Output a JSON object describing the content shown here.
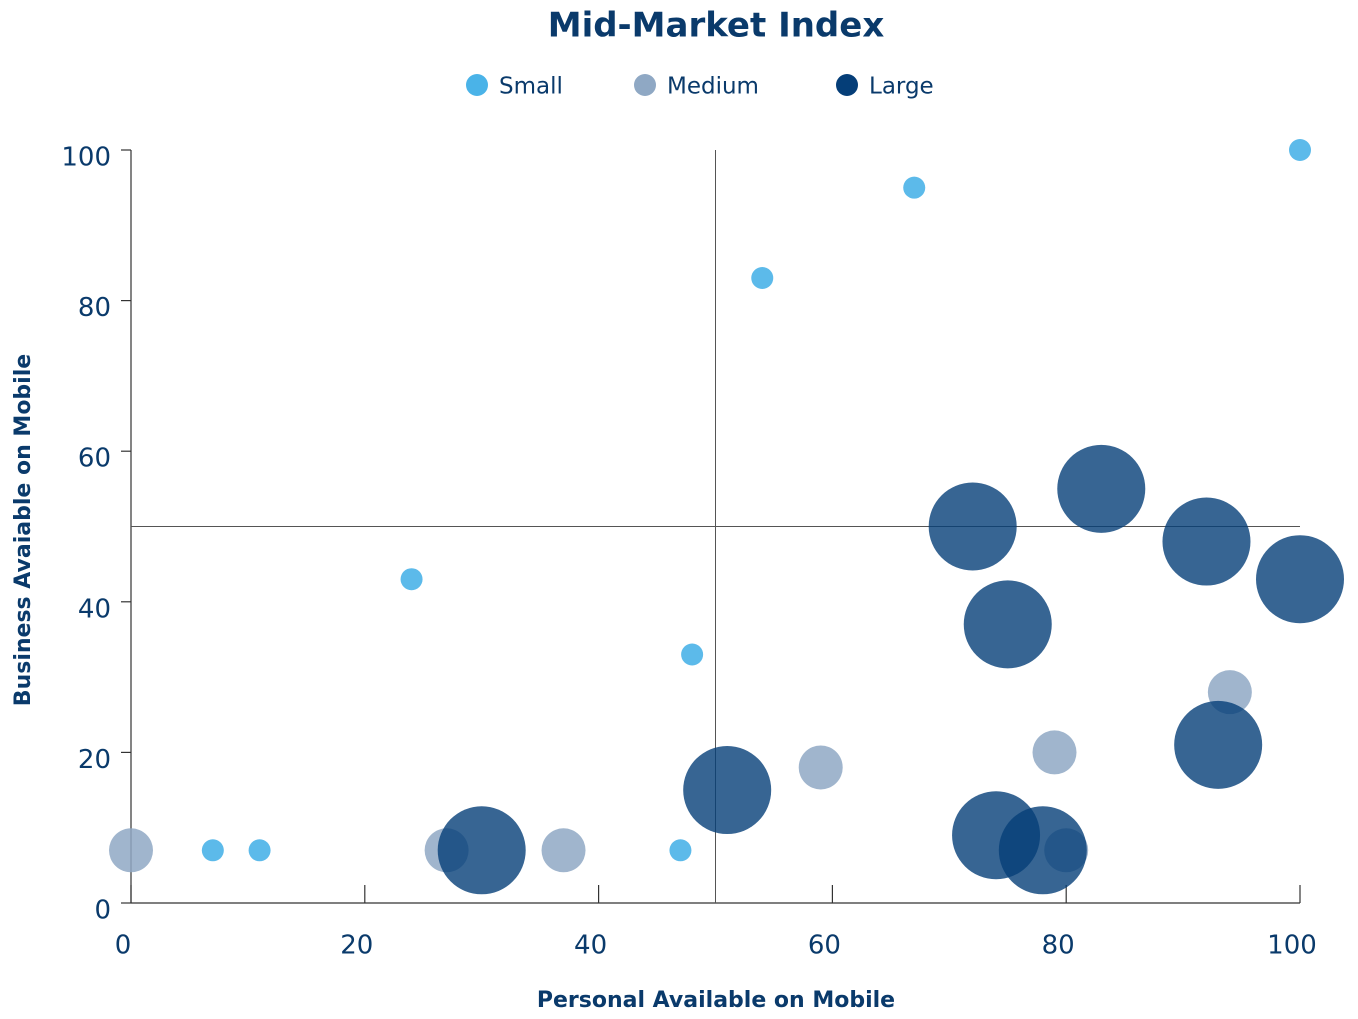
{
  "chart_data": {
    "type": "scatter",
    "title": "Mid-Market Index",
    "xlabel": "Personal Available on Mobile",
    "ylabel": "Business Avaiable on Mobile",
    "xlim": [
      0,
      100
    ],
    "ylim": [
      0,
      100
    ],
    "xticks": [
      0,
      20,
      40,
      60,
      80,
      100
    ],
    "yticks": [
      0,
      20,
      40,
      60,
      80,
      100
    ],
    "reference_lines": {
      "x": 50,
      "y": 50
    },
    "series": [
      {
        "name": "Small",
        "color": "#4ab3e8",
        "opacity": 0.9,
        "x": [
          7,
          11,
          24,
          47,
          48,
          54,
          67,
          100
        ],
        "values": [
          7,
          7,
          43,
          7,
          33,
          83,
          95,
          100
        ],
        "sizes": [
          1,
          1,
          1,
          1,
          1,
          1,
          1,
          1
        ]
      },
      {
        "name": "Medium",
        "color": "#8fa8c4",
        "opacity": 0.85,
        "x": [
          0,
          27,
          37,
          59,
          79,
          94,
          80
        ],
        "values": [
          7,
          7,
          7,
          18,
          20,
          28,
          7
        ],
        "sizes": [
          4,
          4,
          4,
          4,
          4,
          4,
          4
        ]
      },
      {
        "name": "Large",
        "color": "#053e78",
        "opacity": 0.8,
        "x": [
          30,
          51,
          72,
          75,
          83,
          92,
          100,
          74,
          78,
          93
        ],
        "values": [
          7,
          15,
          50,
          37,
          55,
          48,
          43,
          9,
          7,
          21
        ],
        "sizes": [
          16,
          16,
          16,
          16,
          16,
          16,
          16,
          16,
          16,
          16
        ]
      }
    ]
  }
}
